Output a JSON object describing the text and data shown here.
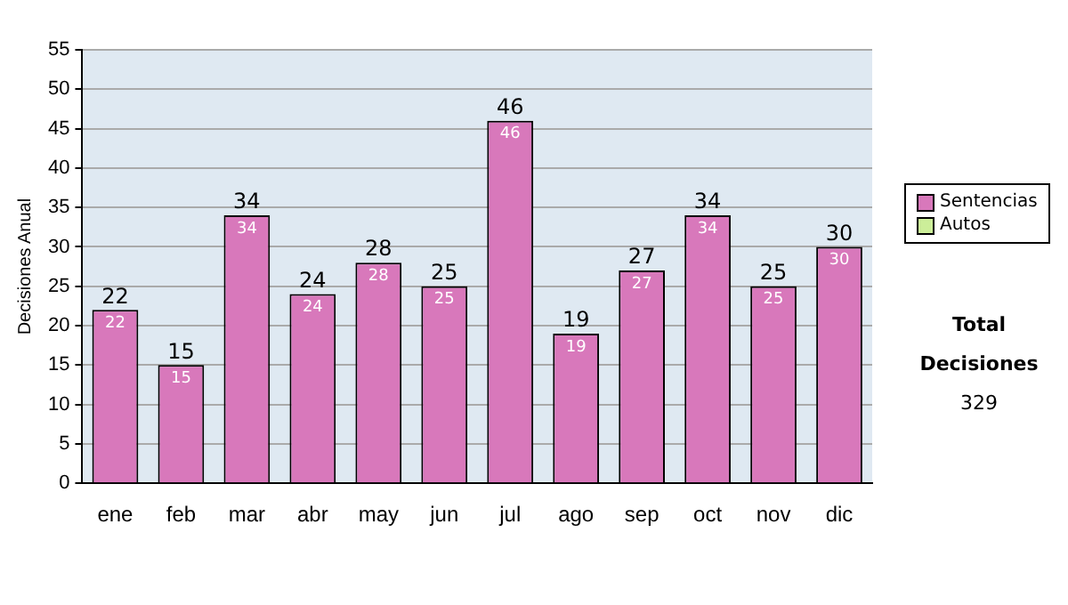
{
  "chart_data": {
    "type": "bar",
    "stacked": true,
    "ylabel": "Decisiones Anual",
    "categories": [
      "ene",
      "feb",
      "mar",
      "abr",
      "may",
      "jun",
      "jul",
      "ago",
      "sep",
      "oct",
      "nov",
      "dic"
    ],
    "series": [
      {
        "name": "Sentencias",
        "color": "#d878bb",
        "values": [
          22,
          15,
          34,
          24,
          28,
          25,
          46,
          19,
          27,
          34,
          25,
          30
        ],
        "value_labels": [
          "22",
          "15",
          "34",
          "24",
          "28",
          "25",
          "46",
          "19",
          "27",
          "34",
          "25",
          "30"
        ]
      },
      {
        "name": "Autos",
        "color": "#ccee99",
        "values": [
          0,
          0,
          0,
          0,
          0,
          0,
          0,
          0,
          0,
          0,
          0,
          0
        ]
      }
    ],
    "totals": [
      "22",
      "15",
      "34",
      "24",
      "28",
      "25",
      "46",
      "19",
      "27",
      "34",
      "25",
      "30"
    ],
    "ylim": [
      0,
      55
    ],
    "yticks": [
      0,
      5,
      10,
      15,
      20,
      25,
      30,
      35,
      40,
      45,
      50,
      55
    ],
    "grid": "y",
    "legend": "right",
    "annotations": [
      "Total Decisiones",
      "329"
    ]
  }
}
